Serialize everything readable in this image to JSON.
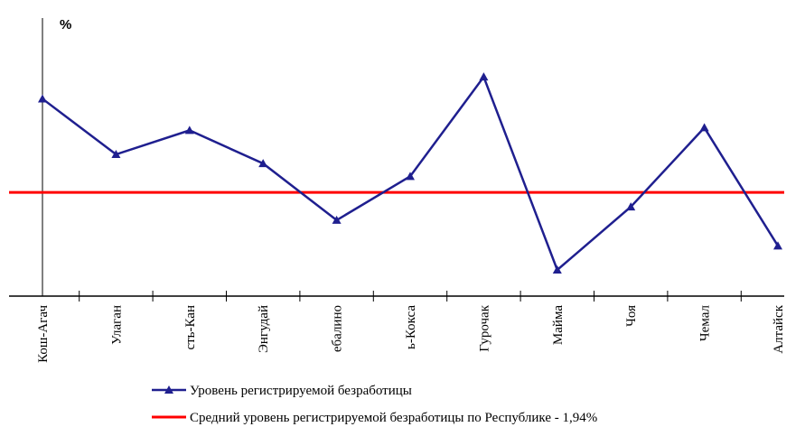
{
  "chart_data": {
    "type": "line",
    "y_label": "%",
    "categories": [
      "Кош-Агач",
      "Улаган",
      "сть-Кан",
      "Энгудай",
      "ебалино",
      "ь-Кокса",
      "Гурочак",
      "Майма",
      "Чоя",
      "Чемал",
      "Алтайск"
    ],
    "series": [
      {
        "name": "Уровень регистрируемой безработицы",
        "color": "#1f1f8f",
        "values": [
          3.69,
          2.65,
          3.1,
          2.48,
          1.42,
          2.24,
          4.1,
          0.49,
          1.67,
          3.15,
          0.94
        ]
      }
    ],
    "reference_line": {
      "name": "Средний уровень регистрируемой безработицы по Республике - 1,94%",
      "color": "#ff0000",
      "value": 1.94
    },
    "ylim": [
      0,
      5.2
    ]
  }
}
